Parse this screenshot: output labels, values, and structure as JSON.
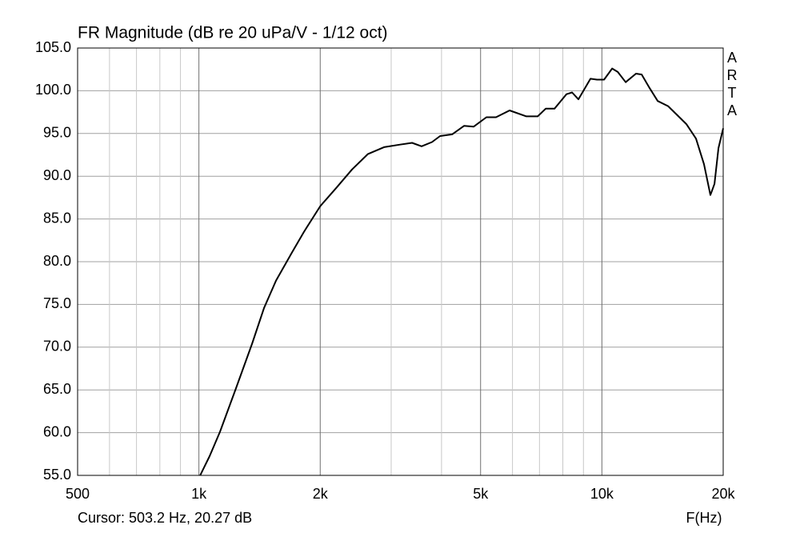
{
  "chart_data": {
    "type": "line",
    "title": "FR Magnitude (dB re 20 uPa/V - 1/12 oct)",
    "watermark": "ARTA",
    "cursor": "Cursor: 503.2 Hz, 20.27 dB",
    "x_label": "F(Hz)",
    "xscale": "log",
    "xlim": [
      500,
      20000
    ],
    "ylim": [
      55,
      105
    ],
    "grid": true,
    "xticks": [
      500,
      {
        "value": 1000,
        "label": "1k"
      },
      {
        "value": 2000,
        "label": "2k"
      },
      {
        "value": 5000,
        "label": "5k"
      },
      {
        "value": 10000,
        "label": "10k"
      },
      {
        "value": 20000,
        "label": "20k"
      }
    ],
    "xminor": [
      600,
      700,
      800,
      900,
      3000,
      4000,
      6000,
      7000,
      8000,
      9000
    ],
    "yticks": [
      {
        "value": 55,
        "label": "55.0"
      },
      {
        "value": 60,
        "label": "60.0"
      },
      {
        "value": 65,
        "label": "65.0"
      },
      {
        "value": 70,
        "label": "70.0"
      },
      {
        "value": 75,
        "label": "75.0"
      },
      {
        "value": 80,
        "label": "80.0"
      },
      {
        "value": 85,
        "label": "85.0"
      },
      {
        "value": 90,
        "label": "90.0"
      },
      {
        "value": 95,
        "label": "95.0"
      },
      {
        "value": 100,
        "label": "100.0"
      },
      {
        "value": 105,
        "label": "105.0"
      }
    ],
    "series": [
      {
        "color": "#000000",
        "x": [
          1007,
          1063,
          1128,
          1236,
          1355,
          1451,
          1554,
          1703,
          1823,
          2000,
          2189,
          2399,
          2628,
          2880,
          3155,
          3380,
          3570,
          3788,
          3967,
          4249,
          4552,
          4804,
          5169,
          5461,
          5903,
          6497,
          6929,
          7252,
          7627,
          8167,
          8433,
          8745,
          9369,
          9721,
          10125,
          10602,
          10947,
          11455,
          12153,
          12552,
          13140,
          13752,
          14595,
          15487,
          16211,
          17121,
          17925,
          18593,
          19026,
          19466,
          20000
        ],
        "values": [
          55.0,
          57.25,
          60.1,
          65.2,
          70.4,
          74.6,
          77.8,
          81.1,
          83.5,
          86.5,
          88.6,
          90.8,
          92.6,
          93.4,
          93.7,
          93.9,
          93.5,
          94.0,
          94.7,
          94.9,
          95.9,
          95.8,
          96.9,
          96.9,
          97.7,
          97.0,
          97.0,
          97.9,
          97.9,
          99.6,
          99.8,
          99.0,
          101.4,
          101.3,
          101.3,
          102.6,
          102.2,
          101.0,
          102.0,
          101.9,
          100.3,
          98.8,
          98.2,
          97.0,
          96.1,
          94.4,
          91.4,
          87.8,
          89.1,
          93.3,
          95.6
        ]
      }
    ]
  }
}
